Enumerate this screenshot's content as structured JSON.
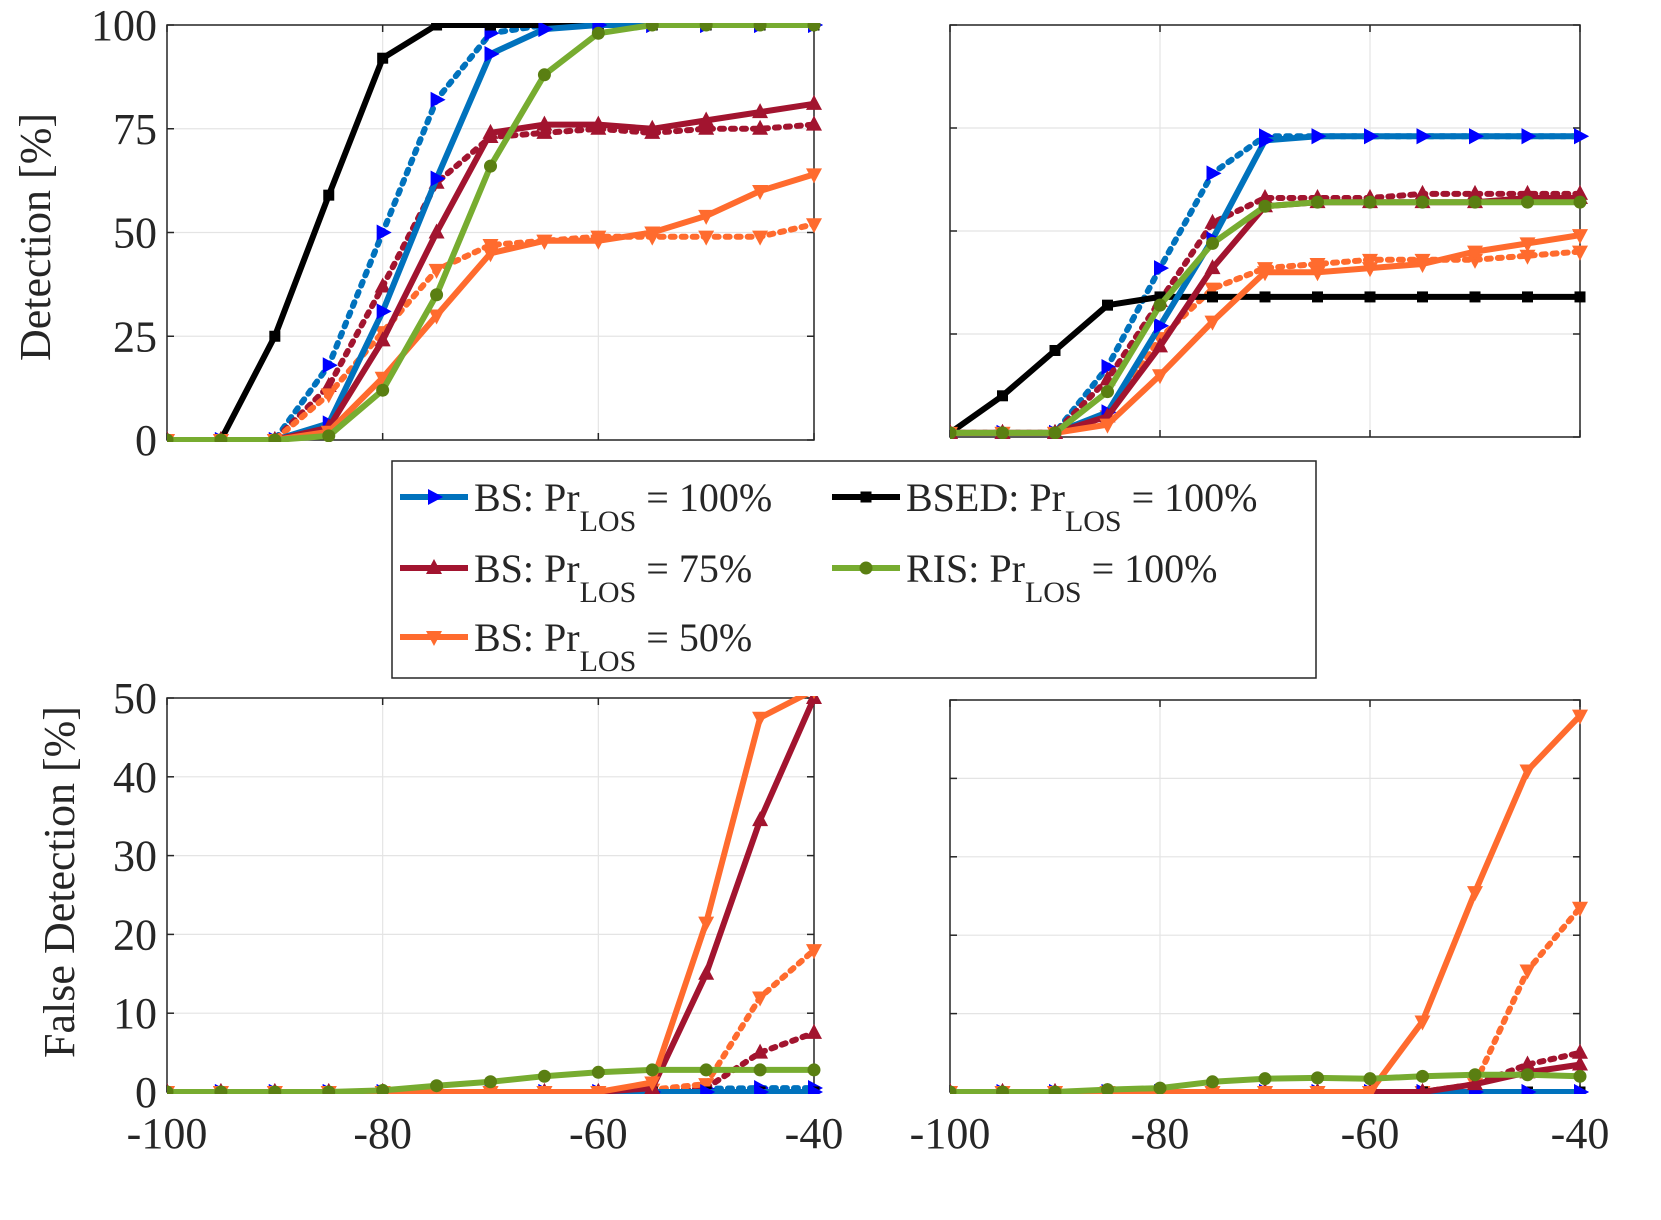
{
  "figure": {
    "ylabel_top": "Detection [%]",
    "ylabel_bottom": "False Detection [%]"
  },
  "colors": {
    "bs100": "#0072BD",
    "bsed100": "#000000",
    "bs75": "#A2142F",
    "ris100": "#77AC30",
    "bs50": "#FF6B2E",
    "marker_bs100": "#0000FF",
    "marker_ris": "#5A7F12",
    "grid": "#E4E4E4"
  },
  "legend": {
    "entries": [
      {
        "key": "bs100",
        "prefix": "BS: Pr",
        "sub": "LOS",
        "suffix": " = 100%"
      },
      {
        "key": "bsed100",
        "prefix": "BSED: Pr",
        "sub": "LOS",
        "suffix": " = 100%"
      },
      {
        "key": "bs75",
        "prefix": "BS: Pr",
        "sub": "LOS",
        "suffix": " = 75%"
      },
      {
        "key": "ris100",
        "prefix": "RIS: Pr",
        "sub": "LOS",
        "suffix": " = 100%"
      },
      {
        "key": "bs50",
        "prefix": "BS: Pr",
        "sub": "LOS",
        "suffix": " = 50%"
      }
    ]
  },
  "chart_data": [
    {
      "id": "top-left",
      "type": "line",
      "ylabel": "Detection [%]",
      "xlim": [
        -100,
        -40
      ],
      "ylim": [
        0,
        100
      ],
      "xticks": [
        -100,
        -80,
        -60,
        -40
      ],
      "yticks": [
        0,
        25,
        50,
        75,
        100
      ],
      "show_xtick_labels": false,
      "show_ytick_labels": true,
      "x": [
        -100,
        -95,
        -90,
        -85,
        -80,
        -75,
        -70,
        -65,
        -60,
        -55,
        -50,
        -45,
        -40
      ],
      "series": [
        {
          "key": "bs100",
          "style": "dotted",
          "marker": "tri-right",
          "values": [
            0,
            0,
            0,
            18,
            50,
            82,
            98,
            100,
            100,
            100,
            100,
            100,
            100
          ]
        },
        {
          "key": "bs75",
          "style": "dotted",
          "marker": "tri-up",
          "values": [
            0,
            0,
            0,
            13,
            37,
            62,
            73,
            74,
            75,
            74,
            75,
            75,
            76
          ]
        },
        {
          "key": "bs50",
          "style": "dotted",
          "marker": "tri-down",
          "values": [
            0,
            0,
            0,
            11,
            26,
            41,
            47,
            48,
            49,
            49,
            49,
            49,
            52
          ]
        },
        {
          "key": "bsed100",
          "style": "solid",
          "marker": "square",
          "values": [
            0,
            0,
            25,
            59,
            92,
            100,
            100,
            100,
            100,
            100,
            100,
            100,
            100
          ]
        },
        {
          "key": "bs100",
          "style": "solid",
          "marker": "tri-right",
          "values": [
            0,
            0,
            0,
            4,
            31,
            63,
            93,
            99,
            100,
            100,
            100,
            100,
            100
          ]
        },
        {
          "key": "bs75",
          "style": "solid",
          "marker": "tri-up",
          "values": [
            0,
            0,
            0,
            3,
            24,
            50,
            74,
            76,
            76,
            75,
            77,
            79,
            81
          ]
        },
        {
          "key": "bs50",
          "style": "solid",
          "marker": "tri-down",
          "values": [
            0,
            0,
            0,
            2,
            15,
            30,
            45,
            48,
            48,
            50,
            54,
            60,
            64
          ]
        },
        {
          "key": "ris100",
          "style": "solid",
          "marker": "circle",
          "values": [
            0,
            0,
            0,
            1,
            12,
            35,
            66,
            88,
            98,
            100,
            100,
            100,
            100
          ]
        }
      ]
    },
    {
      "id": "top-right",
      "type": "line",
      "ylabel": "",
      "xlim": [
        -100,
        -40
      ],
      "ylim": [
        0,
        100
      ],
      "xticks": [
        -100,
        -80,
        -60,
        -40
      ],
      "yticks": [
        0,
        25,
        50,
        75,
        100
      ],
      "show_xtick_labels": false,
      "show_ytick_labels": false,
      "x": [
        -100,
        -95,
        -90,
        -85,
        -80,
        -75,
        -70,
        -65,
        -60,
        -55,
        -50,
        -45,
        -40
      ],
      "series": [
        {
          "key": "bs100",
          "style": "dotted",
          "marker": "tri-right",
          "values": [
            1,
            1,
            1,
            17,
            41,
            64,
            73,
            73,
            73,
            73,
            73,
            73,
            73
          ]
        },
        {
          "key": "bs75",
          "style": "dotted",
          "marker": "tri-up",
          "values": [
            1,
            1,
            1,
            14,
            33,
            52,
            58,
            58,
            58,
            59,
            59,
            59,
            59
          ]
        },
        {
          "key": "bs50",
          "style": "dotted",
          "marker": "tri-down",
          "values": [
            1,
            1,
            1,
            5,
            24,
            36,
            41,
            42,
            43,
            43,
            43,
            44,
            45
          ]
        },
        {
          "key": "bsed100",
          "style": "solid",
          "marker": "square",
          "values": [
            1,
            10,
            21,
            32,
            34,
            34,
            34,
            34,
            34,
            34,
            34,
            34,
            34
          ]
        },
        {
          "key": "bs100",
          "style": "solid",
          "marker": "tri-right",
          "values": [
            1,
            1,
            1,
            6,
            27,
            48,
            72,
            73,
            73,
            73,
            73,
            73,
            73
          ]
        },
        {
          "key": "bs75",
          "style": "solid",
          "marker": "tri-up",
          "values": [
            1,
            1,
            1,
            5,
            22,
            41,
            56,
            57,
            57,
            57,
            57,
            58,
            58
          ]
        },
        {
          "key": "bs50",
          "style": "solid",
          "marker": "tri-down",
          "values": [
            1,
            1,
            1,
            3,
            15,
            28,
            40,
            40,
            41,
            42,
            45,
            47,
            49
          ]
        },
        {
          "key": "ris100",
          "style": "solid",
          "marker": "circle",
          "values": [
            1,
            1,
            1,
            11,
            32,
            47,
            56,
            57,
            57,
            57,
            57,
            57,
            57
          ]
        }
      ]
    },
    {
      "id": "bottom-left",
      "type": "line",
      "ylabel": "False Detection [%]",
      "xlim": [
        -100,
        -40
      ],
      "ylim": [
        0,
        50
      ],
      "xticks": [
        -100,
        -80,
        -60,
        -40
      ],
      "yticks": [
        0,
        10,
        20,
        30,
        40,
        50
      ],
      "show_xtick_labels": true,
      "show_ytick_labels": true,
      "x": [
        -100,
        -95,
        -90,
        -85,
        -80,
        -75,
        -70,
        -65,
        -60,
        -55,
        -50,
        -45,
        -40
      ],
      "series": [
        {
          "key": "bs100",
          "style": "dotted",
          "marker": "tri-right",
          "values": [
            0,
            0,
            0,
            0,
            0,
            0,
            0,
            0,
            0,
            0.2,
            0.4,
            0.5,
            0.5
          ]
        },
        {
          "key": "bs75",
          "style": "dotted",
          "marker": "tri-up",
          "values": [
            0,
            0,
            0,
            0,
            0,
            0,
            0,
            0,
            0,
            0,
            0.5,
            5,
            7.5
          ]
        },
        {
          "key": "bs50",
          "style": "dotted",
          "marker": "tri-down",
          "values": [
            0,
            0,
            0,
            0,
            0,
            0,
            0,
            0,
            0,
            0.3,
            1,
            12,
            18
          ]
        },
        {
          "key": "bsed100",
          "style": "solid",
          "marker": "square",
          "values": [
            0,
            0,
            0,
            0,
            0,
            0,
            0,
            0,
            0,
            0,
            0,
            0,
            0
          ]
        },
        {
          "key": "bs100",
          "style": "solid",
          "marker": "tri-right",
          "values": [
            0,
            0,
            0,
            0,
            0,
            0,
            0,
            0,
            0,
            0,
            0,
            0,
            0
          ]
        },
        {
          "key": "bs75",
          "style": "solid",
          "marker": "tri-up",
          "values": [
            0,
            0,
            0,
            0,
            0,
            0,
            0,
            0,
            0,
            0.5,
            15,
            34.5,
            50
          ]
        },
        {
          "key": "bs50",
          "style": "solid",
          "marker": "tri-down",
          "values": [
            0,
            0,
            0,
            0,
            0,
            0,
            0,
            0,
            0,
            1.2,
            21.5,
            47.5,
            51
          ]
        },
        {
          "key": "ris100",
          "style": "solid",
          "marker": "circle",
          "values": [
            0,
            0,
            0,
            0,
            0.2,
            0.8,
            1.3,
            2,
            2.5,
            2.8,
            2.8,
            2.8,
            2.8
          ]
        }
      ]
    },
    {
      "id": "bottom-right",
      "type": "line",
      "ylabel": "",
      "xlim": [
        -100,
        -40
      ],
      "ylim": [
        0,
        50
      ],
      "xticks": [
        -100,
        -80,
        -60,
        -40
      ],
      "yticks": [
        0,
        10,
        20,
        30,
        40,
        50
      ],
      "show_xtick_labels": true,
      "show_ytick_labels": false,
      "x": [
        -100,
        -95,
        -90,
        -85,
        -80,
        -75,
        -70,
        -65,
        -60,
        -55,
        -50,
        -45,
        -40
      ],
      "series": [
        {
          "key": "bs100",
          "style": "dotted",
          "marker": "tri-right",
          "values": [
            0,
            0,
            0,
            0,
            0,
            0,
            0,
            0,
            0,
            0,
            0,
            0,
            0
          ]
        },
        {
          "key": "bs75",
          "style": "dotted",
          "marker": "tri-up",
          "values": [
            0,
            0,
            0,
            0,
            0,
            0,
            0,
            0,
            0,
            0,
            1,
            3.5,
            5
          ]
        },
        {
          "key": "bs50",
          "style": "dotted",
          "marker": "tri-down",
          "values": [
            0,
            0,
            0,
            0,
            0,
            0,
            0,
            0,
            0,
            0,
            1,
            15.5,
            23.5
          ]
        },
        {
          "key": "bsed100",
          "style": "solid",
          "marker": "square",
          "values": [
            0,
            0,
            0,
            0,
            0,
            0,
            0,
            0,
            0,
            0,
            0,
            0,
            0
          ]
        },
        {
          "key": "bs100",
          "style": "solid",
          "marker": "tri-right",
          "values": [
            0,
            0,
            0,
            0,
            0,
            0,
            0,
            0,
            0,
            0,
            0,
            0,
            0
          ]
        },
        {
          "key": "bs75",
          "style": "solid",
          "marker": "tri-up",
          "values": [
            0,
            0,
            0,
            0,
            0,
            0,
            0,
            0,
            0,
            0,
            1,
            2.5,
            3.5
          ]
        },
        {
          "key": "bs50",
          "style": "solid",
          "marker": "tri-down",
          "values": [
            0,
            0,
            0,
            0,
            0,
            0,
            0,
            0,
            0,
            9,
            25.5,
            41,
            48
          ]
        },
        {
          "key": "ris100",
          "style": "solid",
          "marker": "circle",
          "values": [
            0,
            0,
            0,
            0.3,
            0.5,
            1.3,
            1.7,
            1.8,
            1.7,
            2,
            2.2,
            2.2,
            2
          ]
        }
      ]
    }
  ]
}
